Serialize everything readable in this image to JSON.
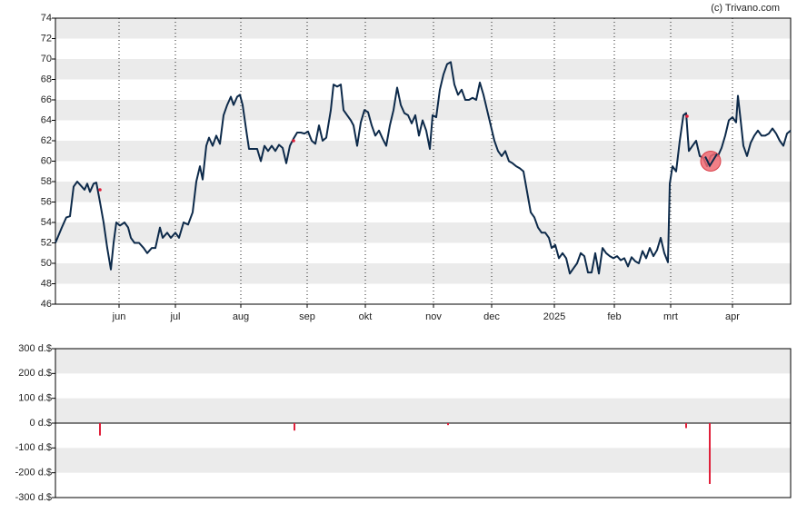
{
  "watermark": "(c) Trivano.com",
  "chart_data": [
    {
      "type": "line",
      "color": "#0d2a4a",
      "xlim": [
        0,
        809
      ],
      "ylim": [
        46,
        74
      ],
      "yticks": [
        46,
        48,
        50,
        52,
        54,
        56,
        58,
        60,
        62,
        64,
        66,
        68,
        70,
        72,
        74
      ],
      "xticks": [
        {
          "value": 70,
          "label": "jun"
        },
        {
          "value": 132,
          "label": "jul"
        },
        {
          "value": 204,
          "label": "aug"
        },
        {
          "value": 277,
          "label": "sep"
        },
        {
          "value": 341,
          "label": "okt"
        },
        {
          "value": 416,
          "label": "nov"
        },
        {
          "value": 480,
          "label": "dec"
        },
        {
          "value": 549,
          "label": "2025"
        },
        {
          "value": 615,
          "label": "feb"
        },
        {
          "value": 677,
          "label": "mrt"
        },
        {
          "value": 745,
          "label": "apr"
        }
      ],
      "x": [
        0,
        7,
        12,
        16,
        20,
        24,
        29,
        32,
        35,
        38,
        42,
        45,
        49,
        53,
        57,
        61,
        64,
        67,
        71,
        76,
        80,
        83,
        87,
        92,
        97,
        101,
        106,
        110,
        115,
        118,
        123,
        127,
        132,
        136,
        141,
        146,
        151,
        155,
        159,
        162,
        166,
        169,
        173,
        177,
        181,
        185,
        189,
        193,
        196,
        200,
        203,
        206,
        210,
        213,
        217,
        222,
        226,
        230,
        234,
        238,
        242,
        246,
        250,
        254,
        258,
        262,
        266,
        270,
        274,
        278,
        282,
        286,
        290,
        294,
        298,
        303,
        306,
        310,
        314,
        317,
        321,
        325,
        328,
        332,
        336,
        340,
        344,
        348,
        352,
        356,
        360,
        364,
        368,
        372,
        376,
        380,
        384,
        388,
        392,
        396,
        400,
        404,
        408,
        412,
        415,
        419,
        423,
        427,
        431,
        435,
        439,
        443,
        447,
        451,
        455,
        459,
        463,
        467,
        471,
        475,
        479,
        483,
        487,
        491,
        495,
        499,
        503,
        507,
        511,
        515,
        519,
        523,
        527,
        531,
        535,
        539,
        543,
        546,
        550,
        554,
        558,
        562,
        566,
        570,
        574,
        578,
        582,
        586,
        590,
        594,
        598,
        602,
        606,
        610,
        614,
        618,
        622,
        626,
        630,
        634,
        638,
        642,
        646,
        650,
        654,
        658,
        662,
        666,
        670,
        674,
        676,
        679,
        683,
        687,
        691,
        694,
        697,
        701,
        705,
        709,
        713,
        717,
        721,
        725,
        729,
        733,
        737,
        741,
        745,
        749,
        751,
        754,
        757,
        761,
        765,
        769,
        773,
        777,
        781,
        785,
        789,
        793,
        797,
        801,
        805,
        809
      ],
      "values": [
        52,
        53.5,
        54.5,
        54.6,
        57.5,
        58,
        57.5,
        57.2,
        57.8,
        57,
        57.8,
        57.9,
        56,
        54,
        51.5,
        49.4,
        52,
        54,
        53.7,
        54,
        53.5,
        52.5,
        52,
        52,
        51.5,
        51,
        51.5,
        51.5,
        53.5,
        52.5,
        53,
        52.5,
        53,
        52.5,
        54,
        53.8,
        55,
        58,
        59.5,
        58.2,
        61.5,
        62.3,
        61.5,
        62.5,
        61.7,
        64.5,
        65.5,
        66.3,
        65.5,
        66.3,
        66.5,
        65.5,
        63,
        61.2,
        61.2,
        61.2,
        60,
        61.5,
        61,
        61.5,
        61,
        61.6,
        61.3,
        59.8,
        61.5,
        62.2,
        62.8,
        62.8,
        62.7,
        62.9,
        62,
        61.7,
        63.5,
        62,
        62.3,
        65,
        67.5,
        67.3,
        67.5,
        65,
        64.5,
        64,
        63.5,
        61.5,
        63.8,
        65,
        64.8,
        63.5,
        62.5,
        63,
        62.2,
        61.5,
        63.5,
        65,
        67.2,
        65.5,
        64.7,
        64.5,
        63.7,
        64.5,
        62.5,
        64,
        63,
        61.2,
        64.5,
        64.3,
        67,
        68.5,
        69.5,
        69.7,
        67.5,
        66.5,
        67,
        66,
        66,
        66.2,
        66,
        67.7,
        66.5,
        65,
        63.5,
        62,
        61,
        60.5,
        61,
        60,
        59.8,
        59.5,
        59.3,
        59,
        57,
        55,
        54.5,
        53.5,
        53,
        53,
        52.5,
        51.5,
        51.8,
        50.5,
        51,
        50.5,
        49,
        49.5,
        50,
        51,
        50.7,
        49.1,
        49.1,
        51,
        49,
        51.5,
        51,
        50.7,
        50.5,
        50.7,
        50.3,
        50.5,
        49.7,
        50.6,
        50.2,
        50,
        51.2,
        50.5,
        51.5,
        50.7,
        51.3,
        52.5,
        51,
        50.1,
        57.8,
        59.5,
        59,
        62,
        64.5,
        64.7,
        61,
        61.5,
        62,
        60.5,
        60.3,
        59.5,
        60.5,
        60.7,
        60.5,
        61.3,
        62.5,
        64,
        64.3,
        63.8,
        66.4,
        64,
        61.5,
        60.5,
        61.8,
        62.5,
        63,
        62.5,
        62.5,
        62.7,
        63.2,
        62.7,
        62,
        61.5,
        62.7,
        63
      ],
      "markers": {
        "color": "#e0203a",
        "x": [
          49,
          262,
          695
        ],
        "values": [
          57.2,
          62,
          64.4
        ]
      },
      "highlight": {
        "color": "#f06a72",
        "x": 721,
        "value": 60
      }
    },
    {
      "type": "bar",
      "color": "#e0203a",
      "xlim": [
        0,
        809
      ],
      "ylim": [
        -300,
        300
      ],
      "yticks": [
        {
          "value": -300,
          "label": "-300 d.$"
        },
        {
          "value": -200,
          "label": "-200 d.$"
        },
        {
          "value": -100,
          "label": "-100 d.$"
        },
        {
          "value": 0,
          "label": "0 d.$"
        },
        {
          "value": 100,
          "label": "100 d.$"
        },
        {
          "value": 200,
          "label": "200 d.$"
        },
        {
          "value": 300,
          "label": "300 d.$"
        }
      ],
      "x": [
        49,
        263,
        432,
        694,
        720
      ],
      "values": [
        -50,
        -30,
        -8,
        -20,
        -245
      ]
    }
  ]
}
